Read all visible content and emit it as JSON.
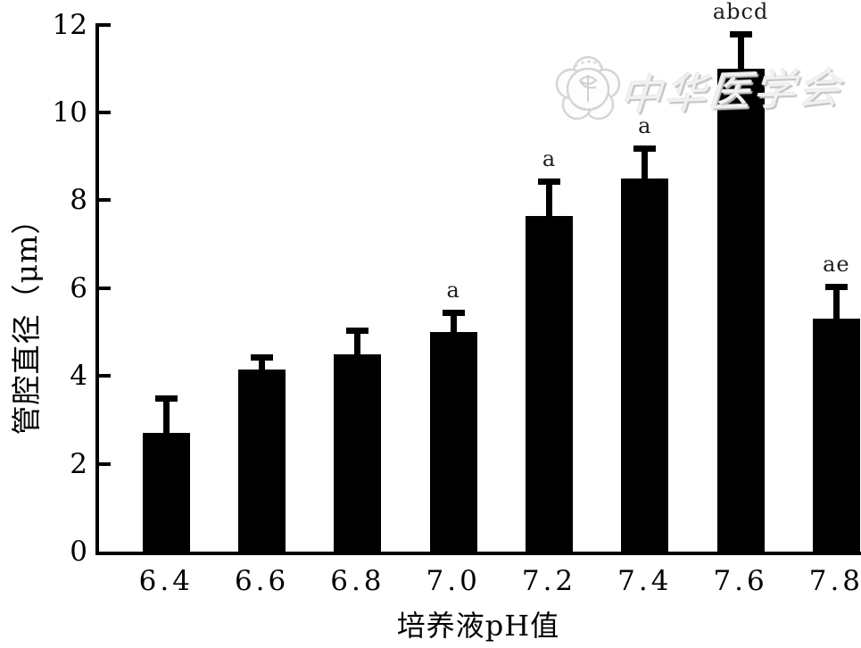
{
  "watermark": {
    "org_name": "中华医学会",
    "logo_name": "chinese-medical-association-emblem",
    "color": "#e6e6e6"
  },
  "chart_data": {
    "type": "bar",
    "title": "",
    "xlabel": "培养液pH值",
    "ylabel": "管腔直径（μm）",
    "categories": [
      "6.4",
      "6.6",
      "6.8",
      "7.0",
      "7.2",
      "7.4",
      "7.6",
      "7.8"
    ],
    "values": [
      2.7,
      4.15,
      4.5,
      5.0,
      7.65,
      8.5,
      11.0,
      5.3
    ],
    "errors_plus": [
      0.85,
      0.35,
      0.6,
      0.5,
      0.85,
      0.75,
      0.85,
      0.8
    ],
    "significance_labels": [
      "",
      "",
      "",
      "a",
      "a",
      "a",
      "abcd",
      "ae"
    ],
    "ylim": [
      0,
      12
    ],
    "yticks": [
      0,
      2,
      4,
      6,
      8,
      10,
      12
    ],
    "bar_color": "#000000",
    "axis_color": "#000000",
    "error_bars": "upper-only",
    "grid": false,
    "legend": null
  }
}
